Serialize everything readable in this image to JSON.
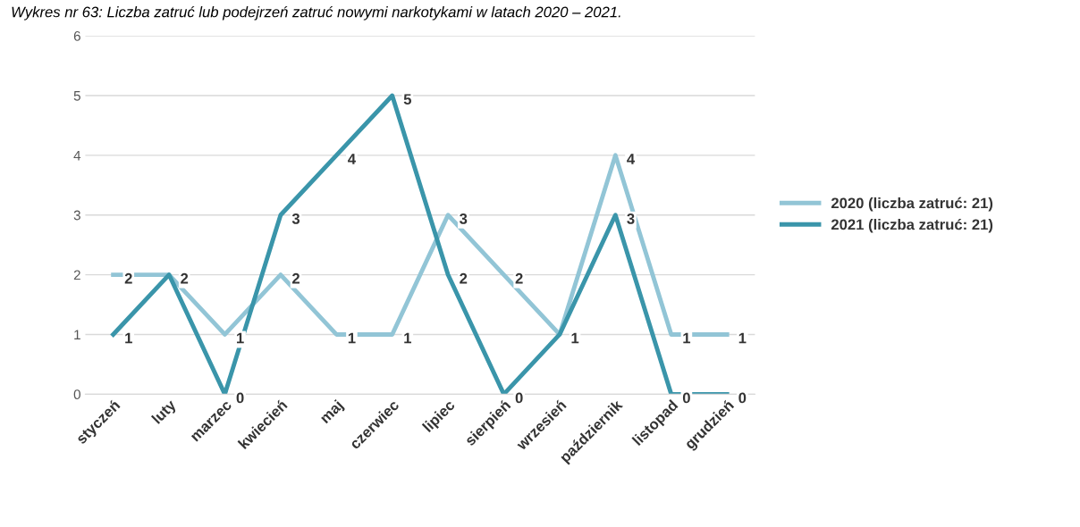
{
  "chart_data": {
    "type": "line",
    "title": "Wykres nr 63: Liczba zatruć lub podejrzeń zatruć nowymi narkotykami w latach 2020 – 2021.",
    "categories": [
      "styczeń",
      "luty",
      "marzec",
      "kwiecień",
      "maj",
      "czerwiec",
      "lipiec",
      "sierpień",
      "wrzesień",
      "październik",
      "listopad",
      "grudzień"
    ],
    "series": [
      {
        "name": "2020 (liczba zatruć: 21)",
        "color": "#92c5d6",
        "values": [
          2,
          2,
          1,
          2,
          1,
          1,
          3,
          2,
          1,
          4,
          1,
          1
        ],
        "value_labels": [
          "2",
          "2",
          "1",
          "2",
          "1",
          "1",
          "3",
          "2",
          "1",
          "4",
          "1",
          "1"
        ]
      },
      {
        "name": "2021 (liczba zatruć: 21)",
        "color": "#3a95aa",
        "values": [
          1,
          2,
          0,
          3,
          4,
          5,
          2,
          0,
          1,
          3,
          0,
          0
        ],
        "value_labels": [
          "1",
          null,
          "0",
          "3",
          "4",
          "5",
          "2",
          "0",
          null,
          "3",
          "0",
          "0"
        ]
      }
    ],
    "ylim": [
      0,
      6
    ],
    "yticks": [
      0,
      1,
      2,
      3,
      4,
      5,
      6
    ],
    "grid": "y",
    "legend": "right",
    "marker": "none",
    "line_style": "solid"
  }
}
